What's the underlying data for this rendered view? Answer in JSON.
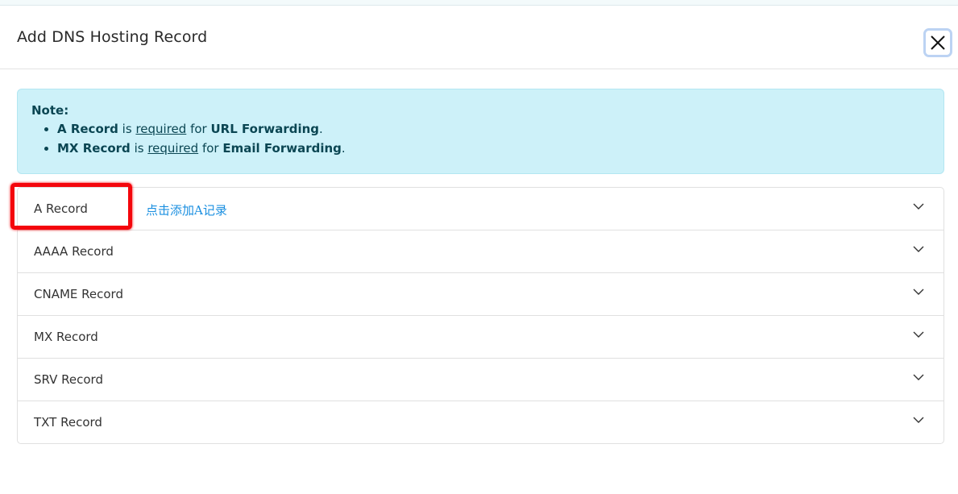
{
  "dialog": {
    "title": "Add DNS Hosting Record",
    "close_icon": "close-icon"
  },
  "note": {
    "heading": "Note:",
    "items": [
      {
        "record": "A Record",
        "is": "is",
        "required": "required",
        "for": "for",
        "target": "URL Forwarding",
        "end": "."
      },
      {
        "record": "MX Record",
        "is": "is",
        "required": "required",
        "for": "for",
        "target": "Email Forwarding",
        "end": "."
      }
    ],
    "colors": {
      "background": "#cdf1f9",
      "text": "#0b4653"
    }
  },
  "records": [
    {
      "label": "A Record"
    },
    {
      "label": "AAAA Record"
    },
    {
      "label": "CNAME Record"
    },
    {
      "label": "MX Record"
    },
    {
      "label": "SRV Record"
    },
    {
      "label": "TXT Record"
    }
  ],
  "annotation": {
    "text": "点击添加A记录",
    "highlight_color": "#f4060c",
    "text_color": "#1a8fe0"
  }
}
